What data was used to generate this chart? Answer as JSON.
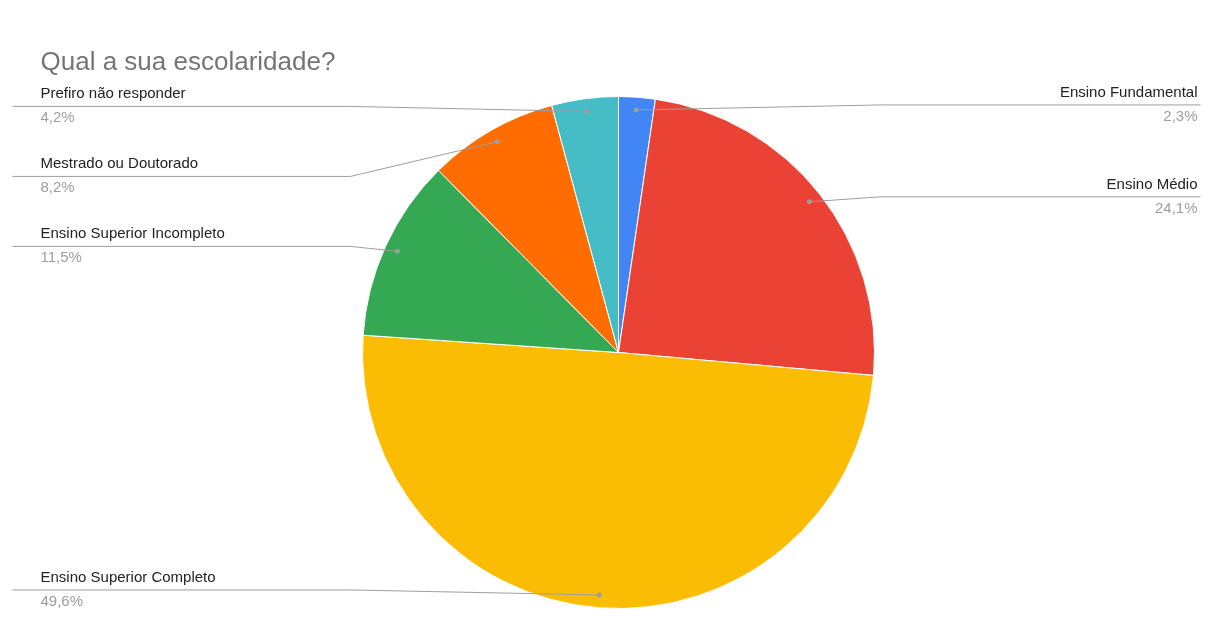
{
  "chart_data": {
    "type": "pie",
    "title": "Qual a sua escolaridade?",
    "categories": [
      "Ensino Fundamental",
      "Ensino Médio",
      "Ensino Superior Completo",
      "Ensino Superior Incompleto",
      "Mestrado ou Doutorado",
      "Prefiro não responder"
    ],
    "values": [
      2.3,
      24.1,
      49.6,
      11.5,
      8.2,
      4.2
    ],
    "colors": [
      "#4285f4",
      "#ea4335",
      "#fbbc04",
      "#34a853",
      "#ff6d01",
      "#46bdc6"
    ],
    "value_labels": [
      "2,3%",
      "24,1%",
      "49,6%",
      "11,5%",
      "8,2%",
      "4,2%"
    ]
  }
}
